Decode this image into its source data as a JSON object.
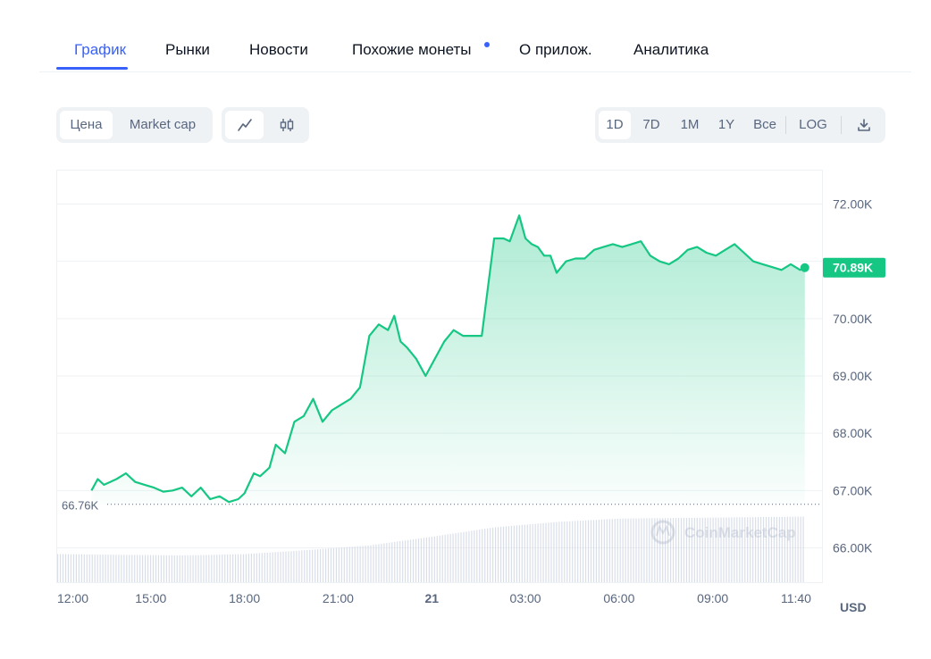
{
  "tabs": {
    "items": [
      {
        "label": "График",
        "active": true
      },
      {
        "label": "Рынки"
      },
      {
        "label": "Новости"
      },
      {
        "label": "Похожие монеты",
        "has_dot": true
      },
      {
        "label": "О прилож."
      },
      {
        "label": "Аналитика"
      }
    ]
  },
  "toolbar": {
    "metric": {
      "price_label": "Цена",
      "marketcap_label": "Market cap",
      "selected": "Цена"
    },
    "chart_style": {
      "line_icon": "line-chart-icon",
      "candle_icon": "candlestick-icon",
      "selected": "line"
    },
    "ranges": [
      "1D",
      "7D",
      "1M",
      "1Y",
      "Все"
    ],
    "selected_range": "1D",
    "log_label": "LOG",
    "download_icon": "download-icon"
  },
  "colors": {
    "accent": "#3861fb",
    "line": "#16c784",
    "price_badge_bg": "#16c784",
    "group_bg": "#eff2f5",
    "muted_text": "#58667e"
  },
  "chart_data": {
    "type": "area",
    "currency_label": "USD",
    "watermark": "CoinMarketCap",
    "reference_line": {
      "value": 66760,
      "label": "66.76K"
    },
    "current_price": {
      "value": 70890,
      "label": "70.89K"
    },
    "ylim": [
      65400,
      72600
    ],
    "y_ticks": [
      {
        "value": 72000,
        "label": "72.00K"
      },
      {
        "value": 71000,
        "label": ""
      },
      {
        "value": 70000,
        "label": "70.00K"
      },
      {
        "value": 69000,
        "label": "69.00K"
      },
      {
        "value": 68000,
        "label": "68.00K"
      },
      {
        "value": 67000,
        "label": "67.00K"
      },
      {
        "value": 66000,
        "label": "66.00K"
      }
    ],
    "y_tick_labels_override": [
      "72.00K",
      "70.00K",
      "69.00K",
      "68.00K",
      "67.00K",
      "66.00K"
    ],
    "x_unit": "hours_from_12:00",
    "xlim": [
      0,
      24.1
    ],
    "x_ticks": [
      {
        "value": 0,
        "label": "12:00",
        "bold": false
      },
      {
        "value": 3,
        "label": "15:00",
        "bold": false
      },
      {
        "value": 6,
        "label": "18:00",
        "bold": false
      },
      {
        "value": 9,
        "label": "21:00",
        "bold": false
      },
      {
        "value": 12,
        "label": "21",
        "bold": true
      },
      {
        "value": 15,
        "label": "03:00",
        "bold": false
      },
      {
        "value": 18,
        "label": "06:00",
        "bold": false
      },
      {
        "value": 21,
        "label": "09:00",
        "bold": false
      },
      {
        "value": 23.67,
        "label": "11:40",
        "bold": false
      }
    ],
    "price_series": {
      "x": [
        1.1,
        1.3,
        1.5,
        1.7,
        1.9,
        2.2,
        2.5,
        2.8,
        3.1,
        3.4,
        3.7,
        4.0,
        4.3,
        4.6,
        4.9,
        5.2,
        5.5,
        5.8,
        6.0,
        6.3,
        6.5,
        6.8,
        7.0,
        7.3,
        7.6,
        7.9,
        8.2,
        8.5,
        8.8,
        9.1,
        9.4,
        9.7,
        10.0,
        10.3,
        10.6,
        10.8,
        11.0,
        11.2,
        11.5,
        11.8,
        12.1,
        12.4,
        12.7,
        13.0,
        13.3,
        13.6,
        14.0,
        14.3,
        14.5,
        14.8,
        15.0,
        15.2,
        15.4,
        15.6,
        15.8,
        16.0,
        16.3,
        16.6,
        16.9,
        17.2,
        17.5,
        17.8,
        18.1,
        18.4,
        18.7,
        19.0,
        19.3,
        19.6,
        19.9,
        20.2,
        20.5,
        20.8,
        21.1,
        21.4,
        21.7,
        22.0,
        22.3,
        22.6,
        22.9,
        23.2,
        23.5,
        23.8,
        23.95
      ],
      "y": [
        67000,
        67200,
        67100,
        67150,
        67200,
        67300,
        67150,
        67100,
        67050,
        66980,
        67000,
        67050,
        66900,
        67050,
        66850,
        66900,
        66800,
        66850,
        66950,
        67300,
        67250,
        67400,
        67800,
        67650,
        68200,
        68300,
        68600,
        68200,
        68400,
        68500,
        68600,
        68800,
        69700,
        69900,
        69800,
        70050,
        69600,
        69500,
        69300,
        69000,
        69300,
        69600,
        69800,
        69700,
        69700,
        69700,
        71400,
        71400,
        71350,
        71800,
        71400,
        71300,
        71250,
        71100,
        71100,
        70800,
        71000,
        71050,
        71050,
        71200,
        71250,
        71300,
        71250,
        71300,
        71350,
        71100,
        71000,
        70950,
        71050,
        71200,
        71250,
        71150,
        71100,
        71200,
        71300,
        71150,
        71000,
        70950,
        70900,
        70850,
        70950,
        70850,
        70890
      ]
    },
    "volume_series": {
      "note": "",
      "x": [
        0,
        2,
        4,
        6,
        8,
        10,
        12,
        14,
        16,
        18,
        20,
        22,
        24
      ],
      "y": [
        0.42,
        0.41,
        0.4,
        0.42,
        0.48,
        0.55,
        0.68,
        0.82,
        0.9,
        0.95,
        0.96,
        0.97,
        0.98
      ]
    }
  }
}
